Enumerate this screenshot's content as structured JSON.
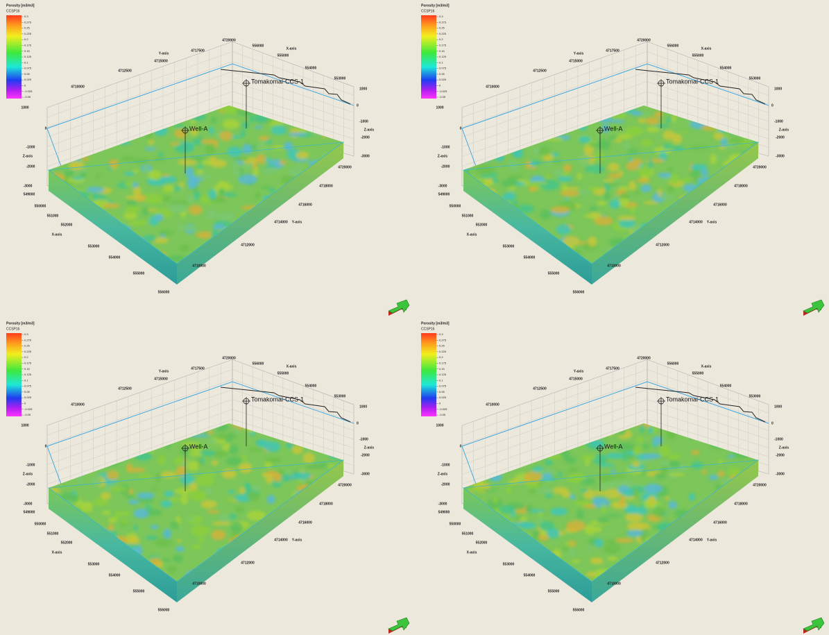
{
  "panels": [
    {
      "legend": {
        "title": "Porosity [m3/m3]",
        "subtitle": "CCSP16",
        "ticks": [
          "0.3",
          "0.275",
          "0.25",
          "0.225",
          "0.2",
          "0.175",
          "0.15",
          "0.125",
          "0.1",
          "0.075",
          "0.05",
          "0.025",
          "0",
          "-0.025",
          "-0.05"
        ]
      },
      "axes": {
        "y_label": "Y-axis",
        "x_label": "X-axis",
        "z_label": "Z-axis",
        "y_top_ticks": [
          "4710000",
          "4712500",
          "4715000",
          "4717500",
          "4720000"
        ],
        "x_top_ticks": [
          "556000",
          "555000",
          "554000",
          "553000"
        ],
        "z_right_ticks": [
          "1000",
          "0",
          "-1000",
          "-2000",
          "-3000"
        ],
        "y_right_ticks": [
          "4720000",
          "4718000",
          "4716000",
          "4714000",
          "4712000",
          "4710000"
        ],
        "x_left_ticks": [
          "549000",
          "550000",
          "551000",
          "552000",
          "553000",
          "554000",
          "555000",
          "556000"
        ],
        "z_left_ticks": [
          "1000",
          "0",
          "-1000",
          "-2000",
          "-3000"
        ]
      },
      "wells": [
        "Well-A",
        "Tomakomai-CCS-1"
      ]
    },
    {
      "legend": {
        "title": "Porosity [m3/m3]",
        "subtitle": "CCSP16",
        "ticks": [
          "0.3",
          "0.275",
          "0.25",
          "0.225",
          "0.2",
          "0.175",
          "0.15",
          "0.125",
          "0.1",
          "0.075",
          "0.05",
          "0.025",
          "0",
          "-0.025",
          "-0.05"
        ]
      },
      "axes": {
        "y_label": "Y-axis",
        "x_label": "X-axis",
        "z_label": "Z-axis",
        "y_top_ticks": [
          "4710000",
          "4712500",
          "4715000",
          "4717500",
          "4720000"
        ],
        "x_top_ticks": [
          "556000",
          "555000",
          "554000",
          "553000"
        ],
        "z_right_ticks": [
          "1000",
          "0",
          "-1000",
          "-2000",
          "-3000"
        ],
        "y_right_ticks": [
          "4720000",
          "4718000",
          "4716000",
          "4714000",
          "4712000",
          "4710000"
        ],
        "x_left_ticks": [
          "549000",
          "550000",
          "551000",
          "552000",
          "553000",
          "554000",
          "555000",
          "556000"
        ],
        "z_left_ticks": [
          "1000",
          "0",
          "-1000",
          "-2000",
          "-3000"
        ]
      },
      "wells": [
        "Well-A",
        "Tomakomai-CCS-1"
      ]
    },
    {
      "legend": {
        "title": "Porosity [m3/m3]",
        "subtitle": "CCSP16",
        "ticks": [
          "0.3",
          "0.275",
          "0.25",
          "0.225",
          "0.2",
          "0.175",
          "0.15",
          "0.125",
          "0.1",
          "0.075",
          "0.05",
          "0.025",
          "0",
          "-0.025",
          "-0.05"
        ]
      },
      "axes": {
        "y_label": "Y-axis",
        "x_label": "X-axis",
        "z_label": "Z-axis",
        "y_top_ticks": [
          "4710000",
          "4712500",
          "4715000",
          "4717500",
          "4720000"
        ],
        "x_top_ticks": [
          "556000",
          "555000",
          "554000",
          "553000"
        ],
        "z_right_ticks": [
          "1000",
          "0",
          "-1000",
          "-2000",
          "-3000"
        ],
        "y_right_ticks": [
          "4720000",
          "4718000",
          "4716000",
          "4714000",
          "4712000",
          "4710000"
        ],
        "x_left_ticks": [
          "549000",
          "550000",
          "551000",
          "552000",
          "553000",
          "554000",
          "555000",
          "556000"
        ],
        "z_left_ticks": [
          "1000",
          "0",
          "-1000",
          "-2000",
          "-3000"
        ]
      },
      "wells": [
        "Well-A",
        "Tomakomai-CCS-1"
      ]
    },
    {
      "legend": {
        "title": "Porosity [m3/m3]",
        "subtitle": "CCSP16",
        "ticks": [
          "0.3",
          "0.275",
          "0.25",
          "0.225",
          "0.2",
          "0.175",
          "0.15",
          "0.125",
          "0.1",
          "0.075",
          "0.05",
          "0.025",
          "0",
          "-0.025",
          "-0.05"
        ]
      },
      "axes": {
        "y_label": "Y-axis",
        "x_label": "X-axis",
        "z_label": "Z-axis",
        "y_top_ticks": [
          "4710000",
          "4712500",
          "4715000",
          "4717500",
          "4720000"
        ],
        "x_top_ticks": [
          "556000",
          "555000",
          "554000",
          "553000"
        ],
        "z_right_ticks": [
          "1000",
          "0",
          "-1000",
          "-2000",
          "-3000"
        ],
        "y_right_ticks": [
          "4720000",
          "4718000",
          "4716000",
          "4714000",
          "4712000",
          "4710000"
        ],
        "x_left_ticks": [
          "549000",
          "550000",
          "551000",
          "552000",
          "553000",
          "554000",
          "555000",
          "556000"
        ],
        "z_left_ticks": [
          "1000",
          "0",
          "-1000",
          "-2000",
          "-3000"
        ]
      },
      "wells": [
        "Well-A",
        "Tomakomai-CCS-1"
      ]
    }
  ]
}
